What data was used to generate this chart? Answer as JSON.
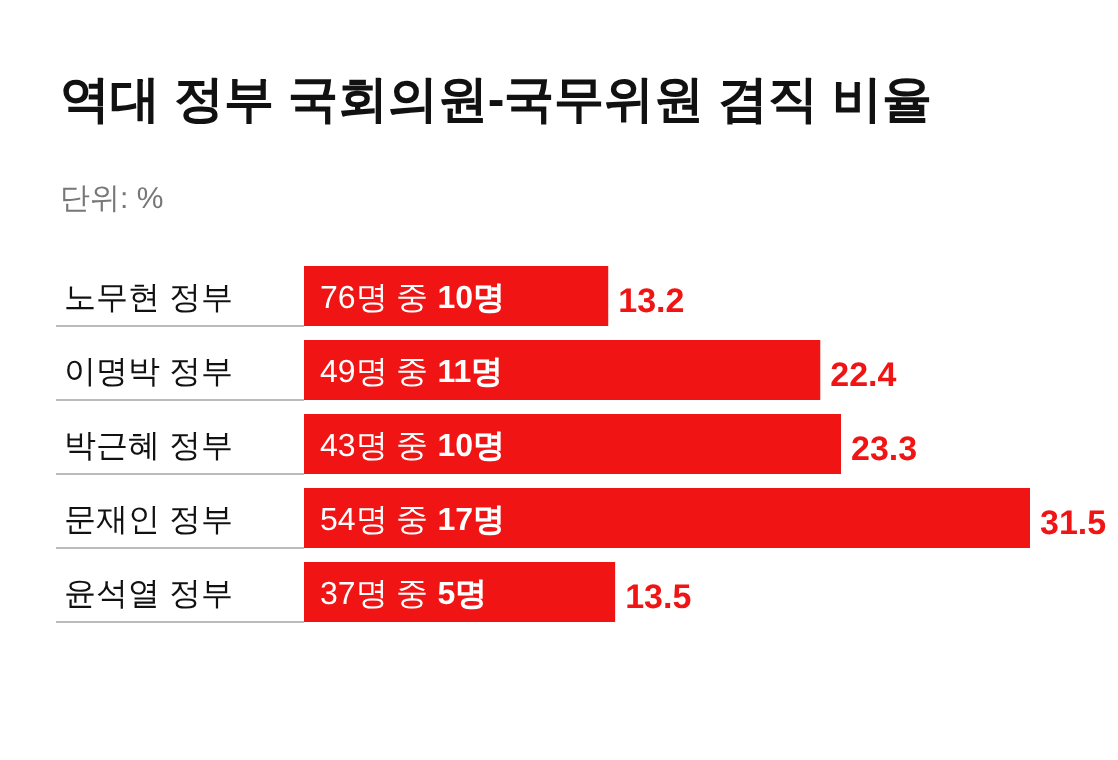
{
  "chart_data": {
    "type": "bar",
    "orientation": "horizontal",
    "title": "역대 정부 국회의원-국무위원 겸직 비율",
    "subtitle": "단위: %",
    "categories": [
      "노무현 정부",
      "이명박 정부",
      "박근혜 정부",
      "문재인 정부",
      "윤석열 정부"
    ],
    "values": [
      13.2,
      22.4,
      23.3,
      31.5,
      13.5
    ],
    "color": "#f01414",
    "data_labels": true,
    "annotations": [
      {
        "text": "76명 중 10명",
        "y": "노무현 정부"
      },
      {
        "text": "49명 중 11명",
        "y": "이명박 정부"
      },
      {
        "text": "43명 중 10명",
        "y": "박근혜 정부"
      },
      {
        "text": "54명 중 17명",
        "y": "문재인 정부"
      },
      {
        "text": "37명 중 5명",
        "y": "윤석열 정부"
      }
    ]
  }
}
